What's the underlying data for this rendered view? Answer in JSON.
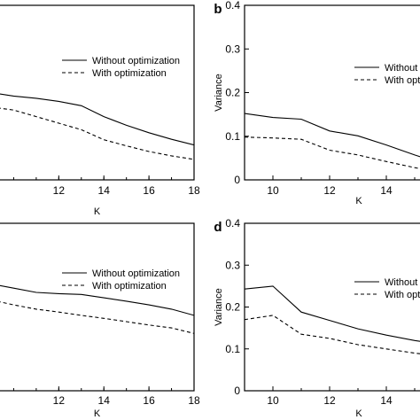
{
  "chart_data": [
    {
      "type": "line",
      "xlabel": "K",
      "ylabel": "",
      "xlim": [
        9,
        18
      ],
      "ylim": [
        0,
        0.4
      ],
      "xticks": [
        "12",
        "14",
        "16",
        "18"
      ],
      "yticks": [],
      "x": [
        9,
        10,
        11,
        12,
        13,
        14,
        15,
        16,
        17,
        18
      ],
      "series": [
        {
          "name": "Without optimization",
          "values": [
            0.2,
            0.192,
            0.187,
            0.18,
            0.17,
            0.145,
            0.125,
            0.108,
            0.093,
            0.08
          ],
          "style": "solid"
        },
        {
          "name": "With optimization",
          "values": [
            0.167,
            0.16,
            0.145,
            0.13,
            0.115,
            0.092,
            0.078,
            0.065,
            0.055,
            0.047
          ],
          "style": "dashed"
        }
      ]
    },
    {
      "type": "line",
      "panel": "b",
      "xlabel": "K",
      "ylabel": "Variance",
      "xlim": [
        9,
        15.5
      ],
      "ylim": [
        0,
        0.4
      ],
      "xticks": [
        "10",
        "12",
        "14"
      ],
      "yticks": [
        "0",
        "0.1",
        "0.2",
        "0.3",
        "0.4"
      ],
      "x": [
        9,
        10,
        11,
        12,
        13,
        14,
        15,
        15.5
      ],
      "series": [
        {
          "name": "Without optimization",
          "values": [
            0.152,
            0.143,
            0.139,
            0.112,
            0.101,
            0.08,
            0.057,
            0.047
          ],
          "style": "solid"
        },
        {
          "name": "With optimization",
          "values": [
            0.098,
            0.096,
            0.093,
            0.068,
            0.057,
            0.042,
            0.028,
            0.022
          ],
          "style": "dashed"
        }
      ]
    },
    {
      "type": "line",
      "xlabel": "K",
      "ylabel": "",
      "xlim": [
        9,
        18
      ],
      "ylim": [
        0,
        0.4
      ],
      "xticks": [
        "12",
        "14",
        "16",
        "18"
      ],
      "yticks": [],
      "x": [
        9,
        10,
        11,
        12,
        13,
        14,
        15,
        16,
        17,
        18
      ],
      "series": [
        {
          "name": "Without optimization",
          "values": [
            0.255,
            0.245,
            0.235,
            0.232,
            0.23,
            0.222,
            0.214,
            0.205,
            0.195,
            0.18
          ],
          "style": "solid"
        },
        {
          "name": "With optimization",
          "values": [
            0.217,
            0.205,
            0.195,
            0.188,
            0.18,
            0.173,
            0.165,
            0.157,
            0.15,
            0.137
          ],
          "style": "dashed"
        }
      ]
    },
    {
      "type": "line",
      "panel": "d",
      "xlabel": "K",
      "ylabel": "Variance",
      "xlim": [
        9,
        15.5
      ],
      "ylim": [
        0,
        0.4
      ],
      "xticks": [
        "10",
        "12",
        "14"
      ],
      "yticks": [
        "0",
        "0.1",
        "0.2",
        "0.3",
        "0.4"
      ],
      "x": [
        9,
        10,
        11,
        12,
        13,
        14,
        15,
        15.5
      ],
      "series": [
        {
          "name": "Without optimization",
          "values": [
            0.243,
            0.25,
            0.188,
            0.168,
            0.148,
            0.133,
            0.12,
            0.115
          ],
          "style": "solid"
        },
        {
          "name": "With optimization",
          "values": [
            0.17,
            0.18,
            0.135,
            0.125,
            0.11,
            0.1,
            0.09,
            0.086
          ],
          "style": "dashed"
        }
      ]
    }
  ]
}
